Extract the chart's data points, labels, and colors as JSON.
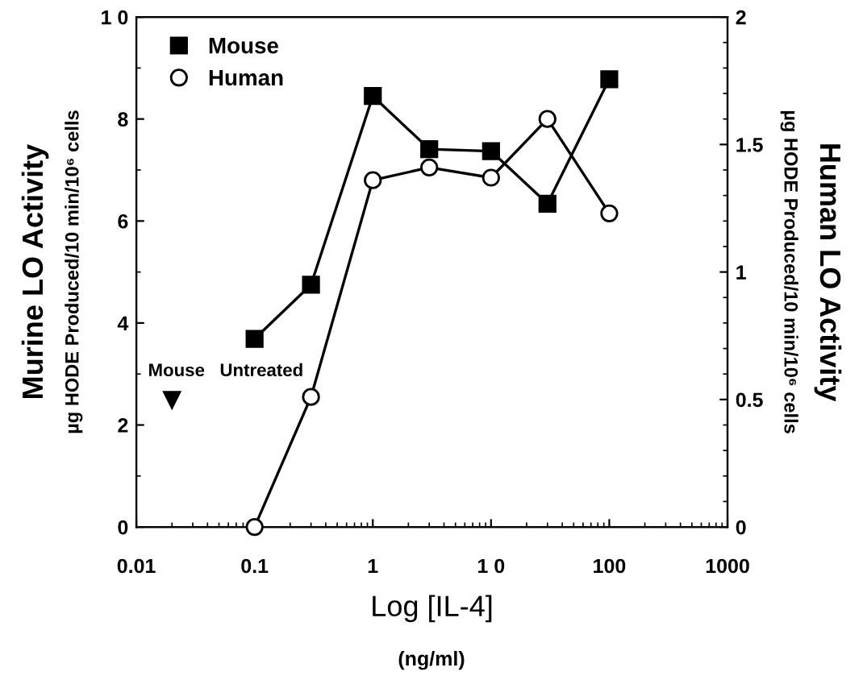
{
  "chart_data": {
    "type": "line",
    "xlabel": "Log [IL-4]\n(ng/ml)",
    "ylabel": "Murine LO Activity\nµg HODE Produced/10 min/10⁶ cells",
    "y2label": "Human LO Activity\nµg HODE Produced/10 min/10⁶ cells",
    "log": "x",
    "grid": false,
    "legend": "top left",
    "line_style": "solid",
    "xlim": [
      0.01,
      1000
    ],
    "xticks": [
      0.01,
      0.1,
      1,
      {
        "value": 10,
        "label": "1 0"
      },
      100,
      1000
    ],
    "ylim": [
      0,
      10
    ],
    "yticks": [
      0,
      2,
      4,
      6,
      8,
      {
        "value": 10,
        "label": "1 0"
      }
    ],
    "y2lim": [
      0,
      2
    ],
    "y2ticks": [
      0,
      0.5,
      1,
      1.5,
      2
    ],
    "series": [
      {
        "name": "Mouse",
        "color": "#000000",
        "marker": "square",
        "x": [
          0.1,
          0.3,
          1,
          3,
          10,
          30,
          100
        ],
        "values": [
          3.69,
          4.75,
          8.45,
          7.41,
          7.37,
          6.34,
          8.78
        ]
      },
      {
        "name": "Human",
        "color": "#000000",
        "marker": "circle",
        "axis": "y2",
        "x": [
          0.1,
          0.3,
          1,
          3,
          10,
          30,
          100
        ],
        "values": [
          0,
          0.51,
          1.36,
          1.41,
          1.37,
          1.6,
          1.23
        ]
      },
      {
        "type": "scatter",
        "color": "#000000",
        "marker": "triangle",
        "x": [
          0.02
        ],
        "values": [
          2.49
        ]
      }
    ],
    "annotations": [
      {
        "text": "Mouse   Untreated",
        "x": 0.02,
        "y": 2.49
      }
    ]
  }
}
